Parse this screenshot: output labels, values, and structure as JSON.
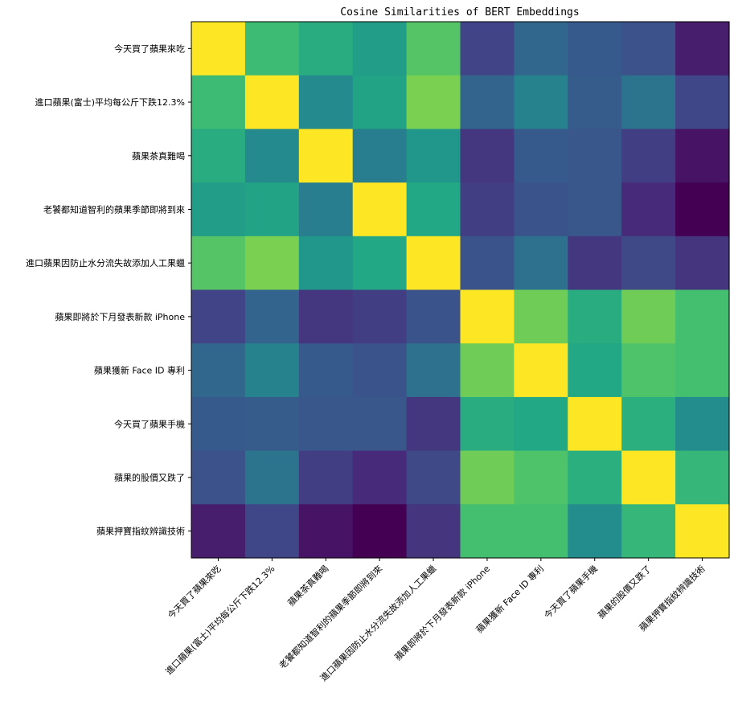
{
  "chart_data": {
    "type": "heatmap",
    "title": "Cosine Similarities of BERT Embeddings",
    "xlabel": "",
    "ylabel": "",
    "labels": [
      "今天買了蘋果來吃",
      "進口蘋果(富士)平均每公斤下跌12.3%",
      "蘋果茶真難喝",
      "老饕都知道智利的蘋果季節即將到來",
      "進口蘋果因防止水分流失故添加人工果蠟",
      "蘋果即將於下月發表新款 iPhone",
      "蘋果獲新 Face ID 專利",
      "今天買了蘋果手機",
      "蘋果的股價又跌了",
      "蘋果押寶指紋辨識技術"
    ],
    "colormap": "viridis",
    "value_range": [
      0,
      1
    ],
    "matrix": [
      [
        1.0,
        0.68,
        0.62,
        0.55,
        0.73,
        0.2,
        0.33,
        0.28,
        0.25,
        0.08
      ],
      [
        0.68,
        1.0,
        0.47,
        0.58,
        0.8,
        0.32,
        0.44,
        0.29,
        0.38,
        0.21
      ],
      [
        0.62,
        0.47,
        1.0,
        0.42,
        0.52,
        0.16,
        0.28,
        0.27,
        0.18,
        0.05
      ],
      [
        0.55,
        0.58,
        0.42,
        1.0,
        0.6,
        0.18,
        0.26,
        0.27,
        0.12,
        0.0
      ],
      [
        0.73,
        0.8,
        0.52,
        0.6,
        1.0,
        0.26,
        0.37,
        0.16,
        0.22,
        0.15
      ],
      [
        0.2,
        0.32,
        0.16,
        0.18,
        0.26,
        1.0,
        0.78,
        0.62,
        0.78,
        0.7
      ],
      [
        0.33,
        0.44,
        0.28,
        0.26,
        0.37,
        0.78,
        1.0,
        0.6,
        0.72,
        0.7
      ],
      [
        0.28,
        0.29,
        0.27,
        0.27,
        0.16,
        0.62,
        0.6,
        1.0,
        0.63,
        0.48
      ],
      [
        0.25,
        0.38,
        0.18,
        0.12,
        0.22,
        0.78,
        0.72,
        0.63,
        1.0,
        0.66
      ],
      [
        0.08,
        0.21,
        0.05,
        0.0,
        0.15,
        0.7,
        0.7,
        0.48,
        0.66,
        1.0
      ]
    ]
  }
}
